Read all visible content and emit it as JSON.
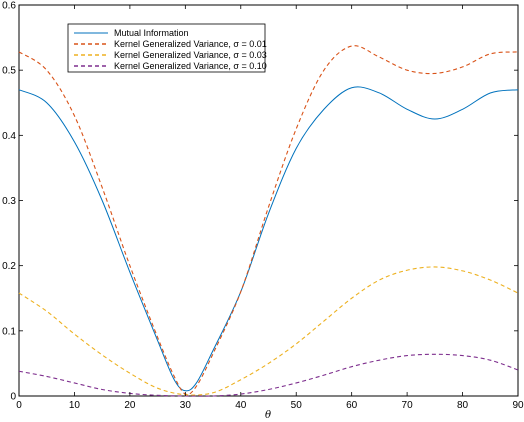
{
  "chart_data": {
    "type": "line",
    "title": "",
    "xlabel": "θ",
    "ylabel": "",
    "xlim": [
      0,
      90
    ],
    "ylim": [
      0,
      0.6
    ],
    "xticks": [
      0,
      10,
      20,
      30,
      40,
      50,
      60,
      70,
      80,
      90
    ],
    "yticks": [
      0,
      0.1,
      0.2,
      0.3,
      0.4,
      0.5,
      0.6
    ],
    "xtick_labels": [
      "0",
      "10",
      "20",
      "30",
      "40",
      "50",
      "60",
      "70",
      "80",
      "90"
    ],
    "ytick_labels": [
      "0",
      "0.1",
      "0.2",
      "0.3",
      "0.4",
      "0.5",
      "0.6"
    ],
    "grid": false,
    "legend_position": "top-left",
    "series": [
      {
        "name": "Mutual Information",
        "color": "#0072BD",
        "style": "solid",
        "x": [
          0,
          5,
          10,
          15,
          20,
          25,
          28,
          30,
          32,
          35,
          40,
          45,
          50,
          55,
          60,
          65,
          70,
          75,
          80,
          85,
          90
        ],
        "y": [
          0.47,
          0.45,
          0.39,
          0.3,
          0.19,
          0.085,
          0.025,
          0.008,
          0.02,
          0.07,
          0.16,
          0.28,
          0.38,
          0.44,
          0.473,
          0.465,
          0.44,
          0.425,
          0.44,
          0.465,
          0.47
        ]
      },
      {
        "name": "Kernel Generalized Variance, σ = 0.01",
        "color": "#D95319",
        "style": "dashed",
        "x": [
          0,
          5,
          10,
          15,
          20,
          25,
          28,
          30,
          32,
          35,
          40,
          45,
          50,
          55,
          60,
          65,
          70,
          75,
          80,
          85,
          90
        ],
        "y": [
          0.528,
          0.5,
          0.43,
          0.32,
          0.2,
          0.09,
          0.03,
          0.003,
          0.015,
          0.065,
          0.16,
          0.29,
          0.41,
          0.5,
          0.537,
          0.52,
          0.5,
          0.495,
          0.505,
          0.525,
          0.528
        ]
      },
      {
        "name": "Kernel Generalized Variance, σ = 0.03",
        "color": "#EDB120",
        "style": "dashed",
        "x": [
          0,
          5,
          10,
          15,
          20,
          25,
          30,
          35,
          40,
          45,
          50,
          55,
          60,
          65,
          70,
          75,
          80,
          85,
          90
        ],
        "y": [
          0.158,
          0.13,
          0.095,
          0.063,
          0.035,
          0.012,
          0.002,
          0.005,
          0.025,
          0.05,
          0.08,
          0.115,
          0.15,
          0.178,
          0.193,
          0.198,
          0.192,
          0.178,
          0.158
        ]
      },
      {
        "name": "Kernel Generalized Variance, σ = 0.10",
        "color": "#7E2F8E",
        "style": "dashed",
        "x": [
          0,
          5,
          10,
          15,
          20,
          25,
          30,
          35,
          40,
          45,
          50,
          55,
          60,
          65,
          70,
          75,
          80,
          85,
          90
        ],
        "y": [
          0.038,
          0.03,
          0.02,
          0.01,
          0.004,
          0.001,
          0.0,
          0.0,
          0.003,
          0.01,
          0.02,
          0.032,
          0.045,
          0.055,
          0.062,
          0.064,
          0.062,
          0.055,
          0.04
        ]
      }
    ]
  }
}
